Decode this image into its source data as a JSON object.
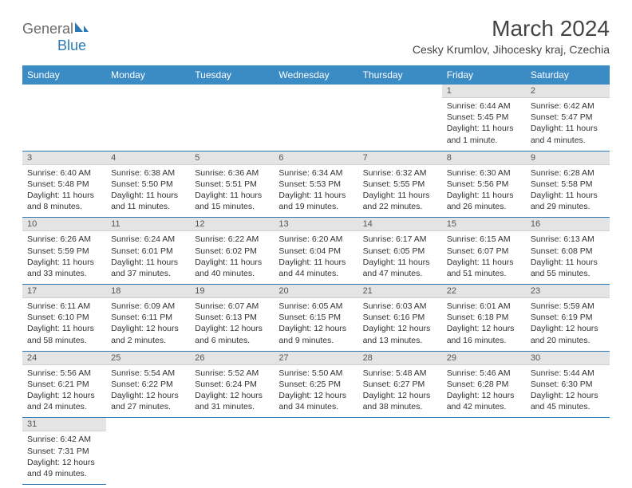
{
  "logo": {
    "text1": "General",
    "text2": "Blue",
    "color_gray": "#6b6b6b",
    "color_blue": "#2a7ab8"
  },
  "title": "March 2024",
  "location": "Cesky Krumlov, Jihocesky kraj, Czechia",
  "header_bg": "#3b8bc4",
  "daynum_bg": "#e4e4e4",
  "row_border": "#2a7ab8",
  "weekdays": [
    "Sunday",
    "Monday",
    "Tuesday",
    "Wednesday",
    "Thursday",
    "Friday",
    "Saturday"
  ],
  "weeks": [
    [
      null,
      null,
      null,
      null,
      null,
      {
        "n": "1",
        "sunrise": "Sunrise: 6:44 AM",
        "sunset": "Sunset: 5:45 PM",
        "day1": "Daylight: 11 hours",
        "day2": "and 1 minute."
      },
      {
        "n": "2",
        "sunrise": "Sunrise: 6:42 AM",
        "sunset": "Sunset: 5:47 PM",
        "day1": "Daylight: 11 hours",
        "day2": "and 4 minutes."
      }
    ],
    [
      {
        "n": "3",
        "sunrise": "Sunrise: 6:40 AM",
        "sunset": "Sunset: 5:48 PM",
        "day1": "Daylight: 11 hours",
        "day2": "and 8 minutes."
      },
      {
        "n": "4",
        "sunrise": "Sunrise: 6:38 AM",
        "sunset": "Sunset: 5:50 PM",
        "day1": "Daylight: 11 hours",
        "day2": "and 11 minutes."
      },
      {
        "n": "5",
        "sunrise": "Sunrise: 6:36 AM",
        "sunset": "Sunset: 5:51 PM",
        "day1": "Daylight: 11 hours",
        "day2": "and 15 minutes."
      },
      {
        "n": "6",
        "sunrise": "Sunrise: 6:34 AM",
        "sunset": "Sunset: 5:53 PM",
        "day1": "Daylight: 11 hours",
        "day2": "and 19 minutes."
      },
      {
        "n": "7",
        "sunrise": "Sunrise: 6:32 AM",
        "sunset": "Sunset: 5:55 PM",
        "day1": "Daylight: 11 hours",
        "day2": "and 22 minutes."
      },
      {
        "n": "8",
        "sunrise": "Sunrise: 6:30 AM",
        "sunset": "Sunset: 5:56 PM",
        "day1": "Daylight: 11 hours",
        "day2": "and 26 minutes."
      },
      {
        "n": "9",
        "sunrise": "Sunrise: 6:28 AM",
        "sunset": "Sunset: 5:58 PM",
        "day1": "Daylight: 11 hours",
        "day2": "and 29 minutes."
      }
    ],
    [
      {
        "n": "10",
        "sunrise": "Sunrise: 6:26 AM",
        "sunset": "Sunset: 5:59 PM",
        "day1": "Daylight: 11 hours",
        "day2": "and 33 minutes."
      },
      {
        "n": "11",
        "sunrise": "Sunrise: 6:24 AM",
        "sunset": "Sunset: 6:01 PM",
        "day1": "Daylight: 11 hours",
        "day2": "and 37 minutes."
      },
      {
        "n": "12",
        "sunrise": "Sunrise: 6:22 AM",
        "sunset": "Sunset: 6:02 PM",
        "day1": "Daylight: 11 hours",
        "day2": "and 40 minutes."
      },
      {
        "n": "13",
        "sunrise": "Sunrise: 6:20 AM",
        "sunset": "Sunset: 6:04 PM",
        "day1": "Daylight: 11 hours",
        "day2": "and 44 minutes."
      },
      {
        "n": "14",
        "sunrise": "Sunrise: 6:17 AM",
        "sunset": "Sunset: 6:05 PM",
        "day1": "Daylight: 11 hours",
        "day2": "and 47 minutes."
      },
      {
        "n": "15",
        "sunrise": "Sunrise: 6:15 AM",
        "sunset": "Sunset: 6:07 PM",
        "day1": "Daylight: 11 hours",
        "day2": "and 51 minutes."
      },
      {
        "n": "16",
        "sunrise": "Sunrise: 6:13 AM",
        "sunset": "Sunset: 6:08 PM",
        "day1": "Daylight: 11 hours",
        "day2": "and 55 minutes."
      }
    ],
    [
      {
        "n": "17",
        "sunrise": "Sunrise: 6:11 AM",
        "sunset": "Sunset: 6:10 PM",
        "day1": "Daylight: 11 hours",
        "day2": "and 58 minutes."
      },
      {
        "n": "18",
        "sunrise": "Sunrise: 6:09 AM",
        "sunset": "Sunset: 6:11 PM",
        "day1": "Daylight: 12 hours",
        "day2": "and 2 minutes."
      },
      {
        "n": "19",
        "sunrise": "Sunrise: 6:07 AM",
        "sunset": "Sunset: 6:13 PM",
        "day1": "Daylight: 12 hours",
        "day2": "and 6 minutes."
      },
      {
        "n": "20",
        "sunrise": "Sunrise: 6:05 AM",
        "sunset": "Sunset: 6:15 PM",
        "day1": "Daylight: 12 hours",
        "day2": "and 9 minutes."
      },
      {
        "n": "21",
        "sunrise": "Sunrise: 6:03 AM",
        "sunset": "Sunset: 6:16 PM",
        "day1": "Daylight: 12 hours",
        "day2": "and 13 minutes."
      },
      {
        "n": "22",
        "sunrise": "Sunrise: 6:01 AM",
        "sunset": "Sunset: 6:18 PM",
        "day1": "Daylight: 12 hours",
        "day2": "and 16 minutes."
      },
      {
        "n": "23",
        "sunrise": "Sunrise: 5:59 AM",
        "sunset": "Sunset: 6:19 PM",
        "day1": "Daylight: 12 hours",
        "day2": "and 20 minutes."
      }
    ],
    [
      {
        "n": "24",
        "sunrise": "Sunrise: 5:56 AM",
        "sunset": "Sunset: 6:21 PM",
        "day1": "Daylight: 12 hours",
        "day2": "and 24 minutes."
      },
      {
        "n": "25",
        "sunrise": "Sunrise: 5:54 AM",
        "sunset": "Sunset: 6:22 PM",
        "day1": "Daylight: 12 hours",
        "day2": "and 27 minutes."
      },
      {
        "n": "26",
        "sunrise": "Sunrise: 5:52 AM",
        "sunset": "Sunset: 6:24 PM",
        "day1": "Daylight: 12 hours",
        "day2": "and 31 minutes."
      },
      {
        "n": "27",
        "sunrise": "Sunrise: 5:50 AM",
        "sunset": "Sunset: 6:25 PM",
        "day1": "Daylight: 12 hours",
        "day2": "and 34 minutes."
      },
      {
        "n": "28",
        "sunrise": "Sunrise: 5:48 AM",
        "sunset": "Sunset: 6:27 PM",
        "day1": "Daylight: 12 hours",
        "day2": "and 38 minutes."
      },
      {
        "n": "29",
        "sunrise": "Sunrise: 5:46 AM",
        "sunset": "Sunset: 6:28 PM",
        "day1": "Daylight: 12 hours",
        "day2": "and 42 minutes."
      },
      {
        "n": "30",
        "sunrise": "Sunrise: 5:44 AM",
        "sunset": "Sunset: 6:30 PM",
        "day1": "Daylight: 12 hours",
        "day2": "and 45 minutes."
      }
    ],
    [
      {
        "n": "31",
        "sunrise": "Sunrise: 6:42 AM",
        "sunset": "Sunset: 7:31 PM",
        "day1": "Daylight: 12 hours",
        "day2": "and 49 minutes."
      },
      null,
      null,
      null,
      null,
      null,
      null
    ]
  ]
}
